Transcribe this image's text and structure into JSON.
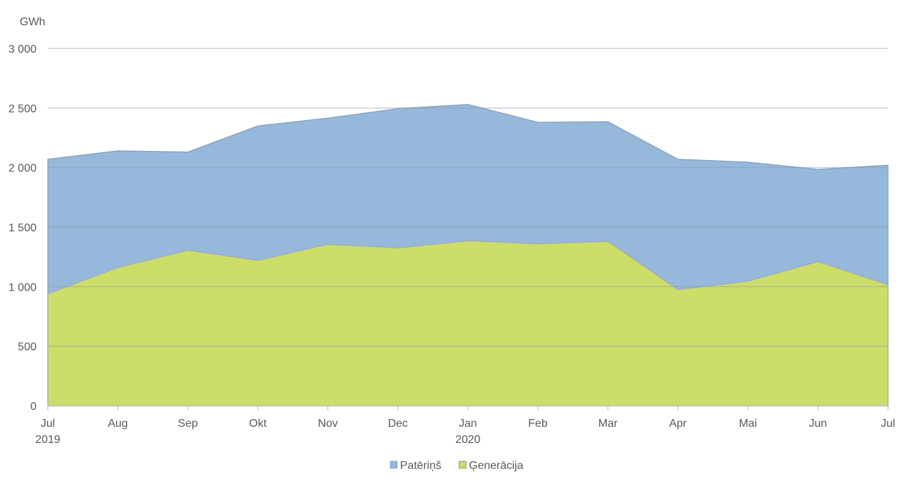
{
  "chart_data": {
    "type": "area",
    "unit_label": "GWh",
    "categories": [
      "Jul",
      "Aug",
      "Sep",
      "Okt",
      "Nov",
      "Dec",
      "Jan",
      "Feb",
      "Mar",
      "Apr",
      "Mai",
      "Jun",
      "Jul"
    ],
    "year_labels": [
      "2019",
      "",
      "",
      "",
      "",
      "",
      "2020",
      "",
      "",
      "",
      "",
      "",
      ""
    ],
    "ylim": [
      0,
      3000
    ],
    "yticks": [
      0,
      500,
      1000,
      1500,
      2000,
      2500,
      3000
    ],
    "ytick_labels": [
      "0",
      "500",
      "1 000",
      "1 500",
      "2 000",
      "2 500",
      "3 000"
    ],
    "grid": true,
    "legend_position": "bottom",
    "series": [
      {
        "name": "Patēriņš",
        "color": "#95B8DB",
        "values": [
          2070,
          2140,
          2130,
          2350,
          2415,
          2495,
          2530,
          2380,
          2385,
          2070,
          2045,
          1985,
          2020
        ]
      },
      {
        "name": "Ģenerācija",
        "color": "#CCDD6A",
        "values": [
          940,
          1160,
          1305,
          1220,
          1355,
          1325,
          1385,
          1360,
          1380,
          975,
          1045,
          1210,
          1015
        ]
      }
    ]
  }
}
